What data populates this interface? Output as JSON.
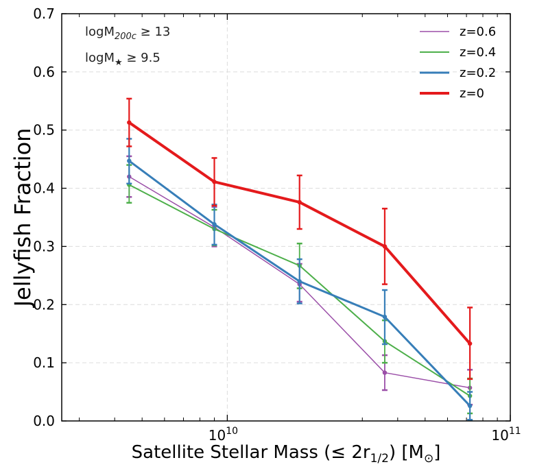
{
  "chart_data": {
    "type": "line",
    "xscale": "log",
    "x": [
      4500000000.0,
      9000000000.0,
      18000000000.0,
      36000000000.0,
      72000000000.0
    ],
    "xlim": [
      2600000000.0,
      100000000000.0
    ],
    "ylim": [
      0.0,
      0.7
    ],
    "xticks": [
      {
        "value": 10000000000.0,
        "base": "10",
        "exp": "10"
      },
      {
        "value": 100000000000.0,
        "base": "10",
        "exp": "11"
      }
    ],
    "yticks": [
      "0.0",
      "0.1",
      "0.2",
      "0.3",
      "0.4",
      "0.5",
      "0.6",
      "0.7"
    ],
    "xlabel": {
      "main": "Satellite Stellar Mass (",
      "leq": "≤",
      "two_r": " 2r",
      "sub": "1/2",
      "close": ") [M",
      "sun_sub": "⊙",
      "end": "]"
    },
    "ylabel": "Jellyfish Fraction",
    "grid": true,
    "annotations": [
      {
        "prefix": "logM",
        "sub": "200c",
        "suffix": " ≥ 13"
      },
      {
        "prefix": "logM",
        "sub": "★",
        "suffix": " ≥ 9.5"
      }
    ],
    "series": [
      {
        "name": "z=0.6",
        "color": "#9b4fa8",
        "width": 1.5,
        "values": [
          0.42,
          0.333,
          0.235,
          0.083,
          0.057
        ],
        "err_low": [
          0.385,
          0.3,
          0.205,
          0.053,
          0.028
        ],
        "err_high": [
          0.455,
          0.368,
          0.27,
          0.113,
          0.088
        ]
      },
      {
        "name": "z=0.4",
        "color": "#4daf4a",
        "width": 2.0,
        "values": [
          0.406,
          0.33,
          0.267,
          0.137,
          0.043
        ],
        "err_low": [
          0.375,
          0.302,
          0.228,
          0.1,
          0.013
        ],
        "err_high": [
          0.44,
          0.363,
          0.305,
          0.173,
          0.073
        ]
      },
      {
        "name": "z=0.2",
        "color": "#377eb8",
        "width": 3.0,
        "values": [
          0.447,
          0.338,
          0.24,
          0.179,
          0.026
        ],
        "err_low": [
          0.408,
          0.303,
          0.202,
          0.132,
          0.002
        ],
        "err_high": [
          0.485,
          0.372,
          0.278,
          0.225,
          0.05
        ]
      },
      {
        "name": "z=0",
        "color": "#e41a1c",
        "width": 4.0,
        "values": [
          0.513,
          0.411,
          0.376,
          0.3,
          0.133
        ],
        "err_low": [
          0.472,
          0.37,
          0.33,
          0.235,
          0.072
        ],
        "err_high": [
          0.554,
          0.452,
          0.422,
          0.365,
          0.195
        ]
      }
    ],
    "legend_order": [
      "z=0.6",
      "z=0.4",
      "z=0.2",
      "z=0"
    ],
    "legend_placement": "top-right"
  }
}
